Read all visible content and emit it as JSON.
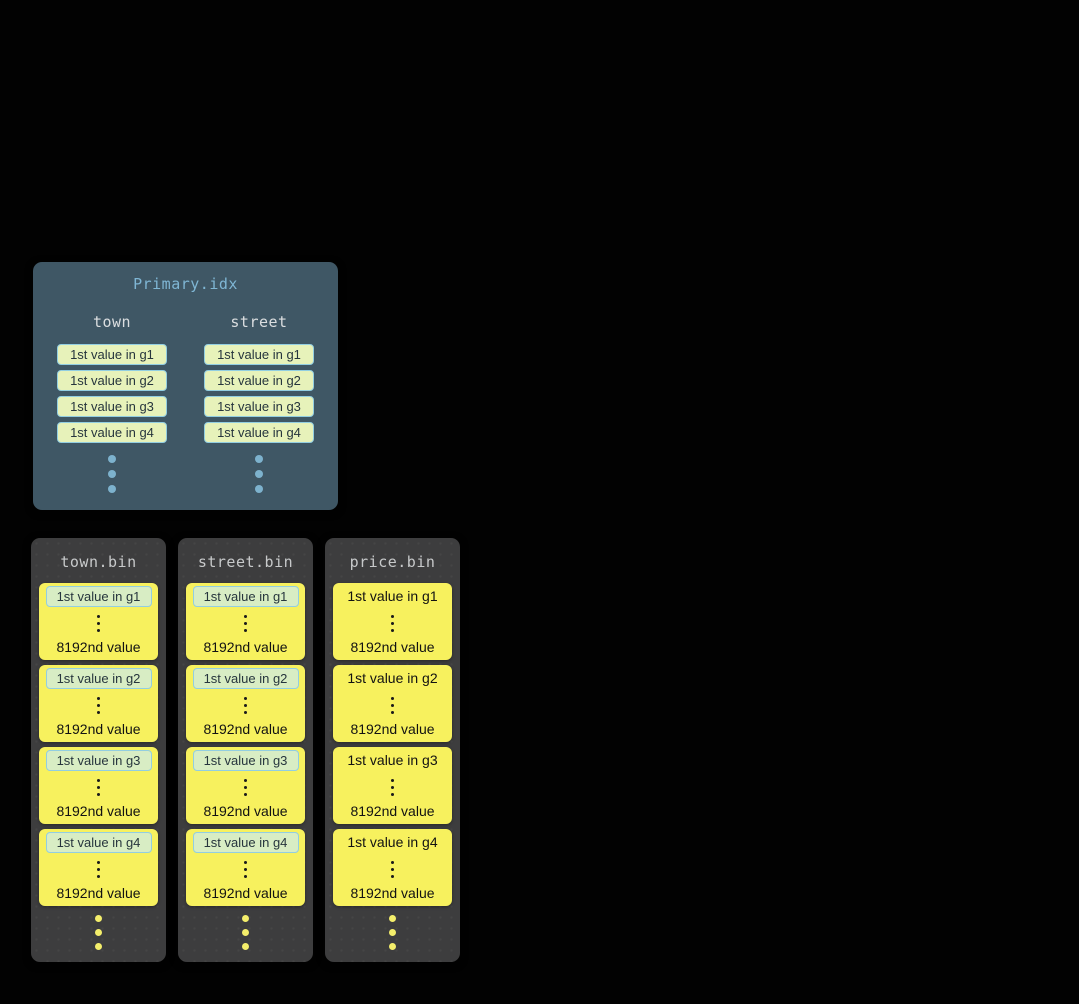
{
  "colors": {
    "canvas-bg": "#020202",
    "panel-bg": "#3f5765",
    "panel-title": "#7fb6d4",
    "panel-header": "#dbdee0",
    "chip-border": "#92cee1",
    "chip-bg-primary": "#e7f2ba",
    "chip-bg-bin": "#d8edc4",
    "chip-text": "#26353d",
    "bin-bg": "#3d3d3e",
    "bin-title": "#c7c9ca",
    "granule-bg": "#f7f15e",
    "granule-text": "#121212",
    "granule-dot": "#1a1a1a",
    "primary-dot": "#7db2cd",
    "bin-dot": "#f4ee6b"
  },
  "primary_index": {
    "title": "Primary.idx",
    "columns": [
      {
        "header": "town",
        "marks": [
          "1st value in g1",
          "1st value in g2",
          "1st value in g3",
          "1st value in g4"
        ]
      },
      {
        "header": "street",
        "marks": [
          "1st value in g1",
          "1st value in g2",
          "1st value in g3",
          "1st value in g4"
        ]
      }
    ]
  },
  "bin_files": [
    {
      "title": "town.bin",
      "first_value_highlighted": true,
      "granules": [
        {
          "first": "1st value in g1",
          "last": "8192nd value"
        },
        {
          "first": "1st value in g2",
          "last": "8192nd value"
        },
        {
          "first": "1st value in g3",
          "last": "8192nd value"
        },
        {
          "first": "1st value in g4",
          "last": "8192nd value"
        }
      ]
    },
    {
      "title": "street.bin",
      "first_value_highlighted": true,
      "granules": [
        {
          "first": "1st value in g1",
          "last": "8192nd value"
        },
        {
          "first": "1st value in g2",
          "last": "8192nd value"
        },
        {
          "first": "1st value in g3",
          "last": "8192nd value"
        },
        {
          "first": "1st value in g4",
          "last": "8192nd value"
        }
      ]
    },
    {
      "title": "price.bin",
      "first_value_highlighted": false,
      "granules": [
        {
          "first": "1st value in g1",
          "last": "8192nd value"
        },
        {
          "first": "1st value in g2",
          "last": "8192nd value"
        },
        {
          "first": "1st value in g3",
          "last": "8192nd value"
        },
        {
          "first": "1st value in g4",
          "last": "8192nd value"
        }
      ]
    }
  ]
}
